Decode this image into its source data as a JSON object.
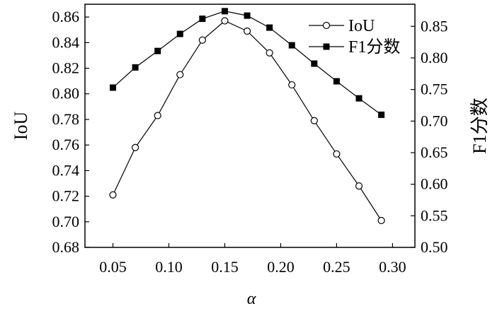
{
  "chart_data": {
    "type": "line",
    "x": [
      0.05,
      0.07,
      0.09,
      0.11,
      0.13,
      0.15,
      0.17,
      0.19,
      0.21,
      0.23,
      0.25,
      0.27,
      0.29
    ],
    "xlabel": "α",
    "xlim": [
      0.025,
      0.32
    ],
    "xticks": [
      "0.05",
      "0.10",
      "0.15",
      "0.20",
      "0.25",
      "0.30"
    ],
    "grid": false,
    "legend_position": "top-right",
    "axes": {
      "left": {
        "label": "IoU",
        "ylim": [
          0.68,
          0.87
        ],
        "ticks": [
          "0.68",
          "0.70",
          "0.72",
          "0.74",
          "0.76",
          "0.78",
          "0.80",
          "0.82",
          "0.84",
          "0.86"
        ]
      },
      "right": {
        "label": "F1分数",
        "ylim": [
          0.5,
          0.885
        ],
        "ticks": [
          "0.50",
          "0.55",
          "0.60",
          "0.65",
          "0.70",
          "0.75",
          "0.80",
          "0.85"
        ]
      }
    },
    "series": [
      {
        "name": "IoU",
        "axis": "left",
        "marker": "open-circle",
        "values": [
          0.721,
          0.758,
          0.783,
          0.815,
          0.842,
          0.857,
          0.849,
          0.832,
          0.807,
          0.779,
          0.753,
          0.728,
          0.701
        ]
      },
      {
        "name": "F1分数",
        "axis": "right",
        "marker": "filled-square",
        "values": [
          0.753,
          0.785,
          0.811,
          0.838,
          0.862,
          0.874,
          0.867,
          0.848,
          0.82,
          0.791,
          0.763,
          0.736,
          0.71
        ]
      }
    ]
  }
}
